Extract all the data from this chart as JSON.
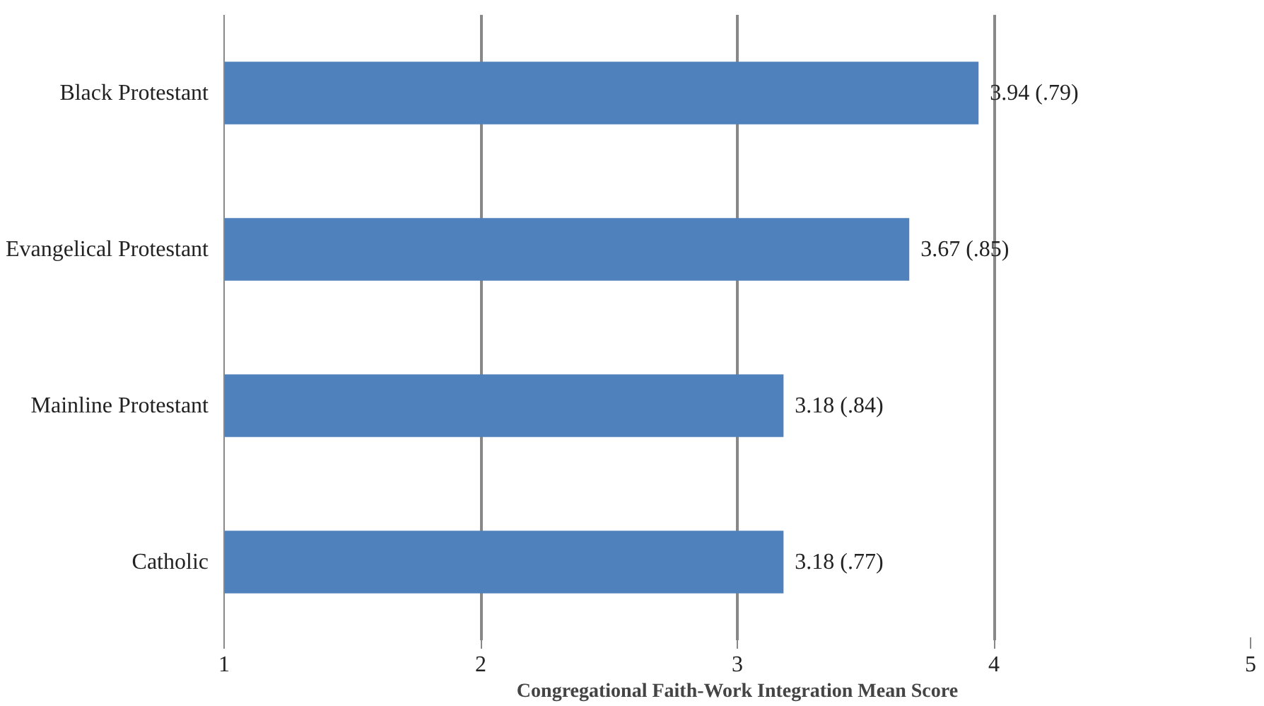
{
  "chart_data": {
    "type": "bar",
    "orientation": "horizontal",
    "categories": [
      "Black Protestant",
      "Evangelical Protestant",
      "Mainline Protestant",
      "Catholic"
    ],
    "values": [
      3.94,
      3.67,
      3.18,
      3.18
    ],
    "value_labels": [
      "3.94 (.79)",
      "3.67 (.85)",
      "3.18 (.84)",
      "3.18 (.77)"
    ],
    "color": "#4f81bd",
    "xlim": [
      1,
      5
    ],
    "xticks": [
      1,
      2,
      3,
      4,
      5
    ],
    "grid": "x",
    "xlabel": "Congregational Faith-Work Integration Mean Score"
  }
}
